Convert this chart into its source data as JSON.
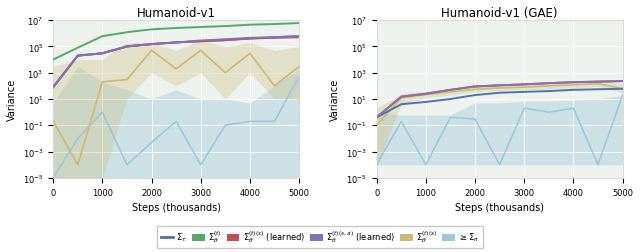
{
  "title1": "Humanoid-v1",
  "title2": "Humanoid-v1 (GAE)",
  "xlabel": "Steps (thousands)",
  "ylabel": "Variance",
  "colors": {
    "blue": "#4C72B0",
    "green": "#55A868",
    "red": "#C44E52",
    "purple": "#8172B2",
    "olive": "#CCB974",
    "lightblue": "#9DC6D8"
  },
  "plot1": {
    "steps": [
      0,
      500,
      1000,
      1500,
      2000,
      2500,
      3000,
      3500,
      4000,
      4500,
      5000
    ],
    "blue_mean": [
      80.0,
      20000.0,
      30000.0,
      100000.0,
      150000.0,
      200000.0,
      250000.0,
      300000.0,
      400000.0,
      500000.0,
      600000.0
    ],
    "green_mean": [
      10000.0,
      80000.0,
      600000.0,
      1200000.0,
      2000000.0,
      2500000.0,
      3000000.0,
      3500000.0,
      4500000.0,
      5000000.0,
      6000000.0
    ],
    "red_mean": [
      80.0,
      20000.0,
      30000.0,
      100000.0,
      150000.0,
      200000.0,
      250000.0,
      300000.0,
      400000.0,
      450000.0,
      500000.0
    ],
    "purple_mean": [
      80.0,
      20000.0,
      30000.0,
      100000.0,
      150000.0,
      200000.0,
      280000.0,
      350000.0,
      450000.0,
      500000.0,
      600000.0
    ],
    "olive_mean": [
      0.2,
      0.0001,
      200.0,
      300.0,
      50000.0,
      2000.0,
      50000.0,
      1000.0,
      30000.0,
      100.0,
      3000.0
    ],
    "olive_lo": [
      1e-05,
      1e-05,
      1e-05,
      10.0,
      1000.0,
      100.0,
      1000.0,
      10.0,
      1000.0,
      10.0,
      10.0
    ],
    "olive_hi": [
      3000.0,
      10000.0,
      10000.0,
      200000.0,
      200000.0,
      50000.0,
      300000.0,
      100000.0,
      200000.0,
      50000.0,
      100000.0
    ],
    "lightblue_mean": [
      1e-05,
      0.01,
      1.0,
      0.0001,
      0.005,
      0.2,
      0.0001,
      0.1,
      0.2,
      0.2,
      500.0
    ],
    "lightblue_lo": [
      1e-05,
      1e-05,
      1e-05,
      1e-05,
      1e-05,
      1e-05,
      1e-05,
      1e-05,
      1e-05,
      1e-05,
      1e-05
    ],
    "lightblue_hi": [
      5.0,
      3000.0,
      200.0,
      50.0,
      10.0,
      50.0,
      10.0,
      10.0,
      5.0,
      100.0,
      2000.0
    ]
  },
  "plot2": {
    "steps": [
      0,
      500,
      1000,
      1500,
      2000,
      2500,
      3000,
      3500,
      4000,
      4500,
      5000
    ],
    "blue_mean": [
      0.4,
      4.0,
      6.0,
      10.0,
      20.0,
      30.0,
      35.0,
      40.0,
      50.0,
      55.0,
      60.0
    ],
    "red_mean": [
      0.4,
      15.0,
      25.0,
      50.0,
      90.0,
      110.0,
      130.0,
      160.0,
      190.0,
      210.0,
      230.0
    ],
    "purple_mean": [
      0.4,
      15.0,
      25.0,
      50.0,
      90.0,
      110.0,
      130.0,
      160.0,
      190.0,
      210.0,
      230.0
    ],
    "olive_mean": [
      0.1,
      12.0,
      22.0,
      35.0,
      55.0,
      70.0,
      80.0,
      100.0,
      120.0,
      150.0,
      60.0
    ],
    "olive_lo": [
      0.0001,
      4.0,
      12.0,
      20.0,
      35.0,
      45.0,
      50.0,
      60.0,
      70.0,
      90.0,
      30.0
    ],
    "olive_hi": [
      2.0,
      25.0,
      40.0,
      60.0,
      100.0,
      120.0,
      140.0,
      180.0,
      200.0,
      250.0,
      140.0
    ],
    "lightblue_mean": [
      0.0001,
      0.2,
      0.0001,
      0.4,
      0.3,
      0.0001,
      2.0,
      1.0,
      2.0,
      0.0001,
      20.0
    ],
    "lightblue_lo": [
      0.0001,
      0.0001,
      0.0001,
      0.0001,
      0.0001,
      0.0001,
      0.0001,
      0.0001,
      0.0001,
      0.0001,
      0.0001
    ],
    "lightblue_hi": [
      1.0,
      0.6,
      0.6,
      0.6,
      5.0,
      5.0,
      7.0,
      7.0,
      8.0,
      10.0,
      20.0
    ]
  }
}
